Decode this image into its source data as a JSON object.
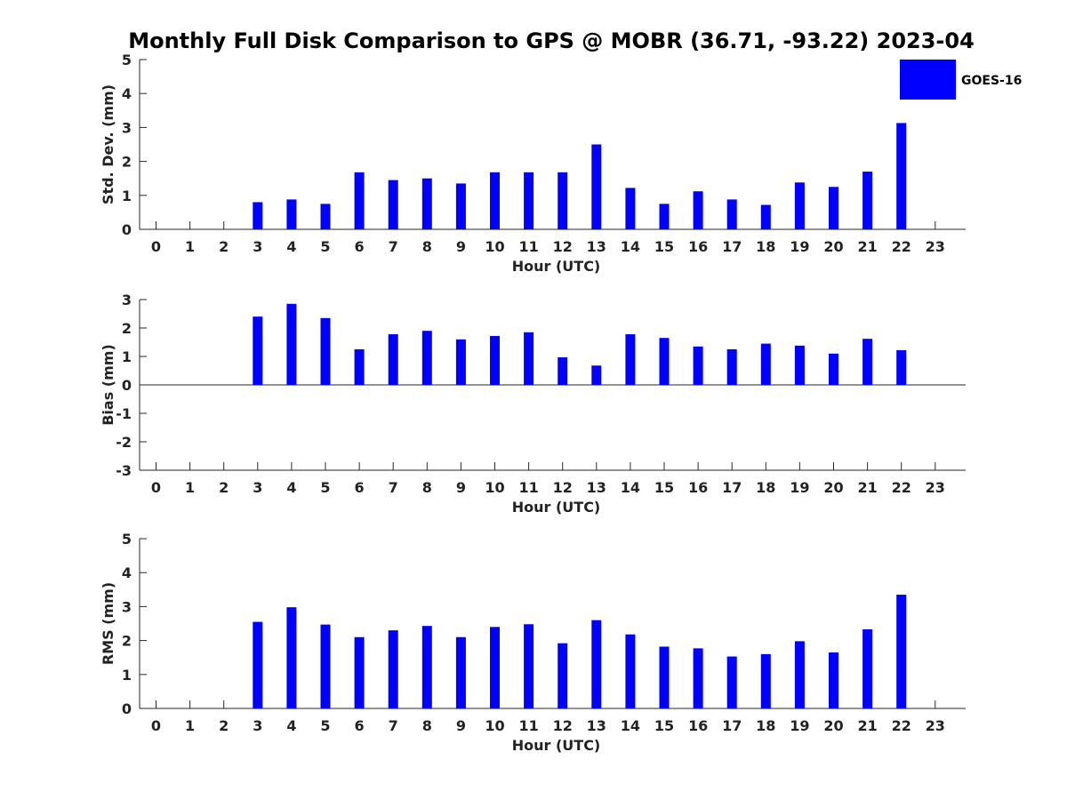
{
  "title": "Monthly Full Disk Comparison to GPS @ MOBR (36.71, -93.22) 2023-04",
  "legend": {
    "label": "GOES-16",
    "color": "#0000ff"
  },
  "chart_data": [
    {
      "type": "bar",
      "name": "std",
      "title": "",
      "xlabel": "Hour (UTC)",
      "ylabel": "Std. Dev. (mm)",
      "categories": [
        "0",
        "1",
        "2",
        "3",
        "4",
        "5",
        "6",
        "7",
        "8",
        "9",
        "10",
        "11",
        "12",
        "13",
        "14",
        "15",
        "16",
        "17",
        "18",
        "19",
        "20",
        "21",
        "22",
        "23"
      ],
      "yticks": [
        "0",
        "1",
        "2",
        "3",
        "4",
        "5"
      ],
      "ylim": [
        0,
        5
      ],
      "series": [
        {
          "name": "GOES-16",
          "color": "#0000ff",
          "values": [
            null,
            null,
            null,
            0.8,
            0.88,
            0.75,
            1.68,
            1.45,
            1.5,
            1.35,
            1.68,
            1.68,
            1.68,
            2.5,
            1.22,
            0.75,
            1.12,
            0.88,
            0.72,
            1.38,
            1.25,
            1.7,
            3.13,
            null
          ]
        }
      ]
    },
    {
      "type": "bar",
      "name": "bias",
      "title": "",
      "xlabel": "Hour (UTC)",
      "ylabel": "Bias (mm)",
      "categories": [
        "0",
        "1",
        "2",
        "3",
        "4",
        "5",
        "6",
        "7",
        "8",
        "9",
        "10",
        "11",
        "12",
        "13",
        "14",
        "15",
        "16",
        "17",
        "18",
        "19",
        "20",
        "21",
        "22",
        "23"
      ],
      "yticks": [
        "-3",
        "-2",
        "-1",
        "0",
        "1",
        "2",
        "3"
      ],
      "ylim": [
        -3,
        3
      ],
      "series": [
        {
          "name": "GOES-16",
          "color": "#0000ff",
          "values": [
            null,
            null,
            null,
            2.4,
            2.85,
            2.35,
            1.25,
            1.78,
            1.9,
            1.6,
            1.72,
            1.85,
            0.97,
            0.68,
            1.78,
            1.65,
            1.35,
            1.25,
            1.45,
            1.38,
            1.1,
            1.62,
            1.22,
            null
          ]
        }
      ]
    },
    {
      "type": "bar",
      "name": "rms",
      "title": "",
      "xlabel": "Hour (UTC)",
      "ylabel": "RMS (mm)",
      "categories": [
        "0",
        "1",
        "2",
        "3",
        "4",
        "5",
        "6",
        "7",
        "8",
        "9",
        "10",
        "11",
        "12",
        "13",
        "14",
        "15",
        "16",
        "17",
        "18",
        "19",
        "20",
        "21",
        "22",
        "23"
      ],
      "yticks": [
        "0",
        "1",
        "2",
        "3",
        "4",
        "5"
      ],
      "ylim": [
        0,
        5
      ],
      "series": [
        {
          "name": "GOES-16",
          "color": "#0000ff",
          "values": [
            null,
            null,
            null,
            2.55,
            2.98,
            2.47,
            2.1,
            2.3,
            2.43,
            2.1,
            2.4,
            2.48,
            1.92,
            2.6,
            2.18,
            1.82,
            1.77,
            1.53,
            1.6,
            1.98,
            1.65,
            2.33,
            3.35,
            null
          ]
        }
      ]
    }
  ]
}
